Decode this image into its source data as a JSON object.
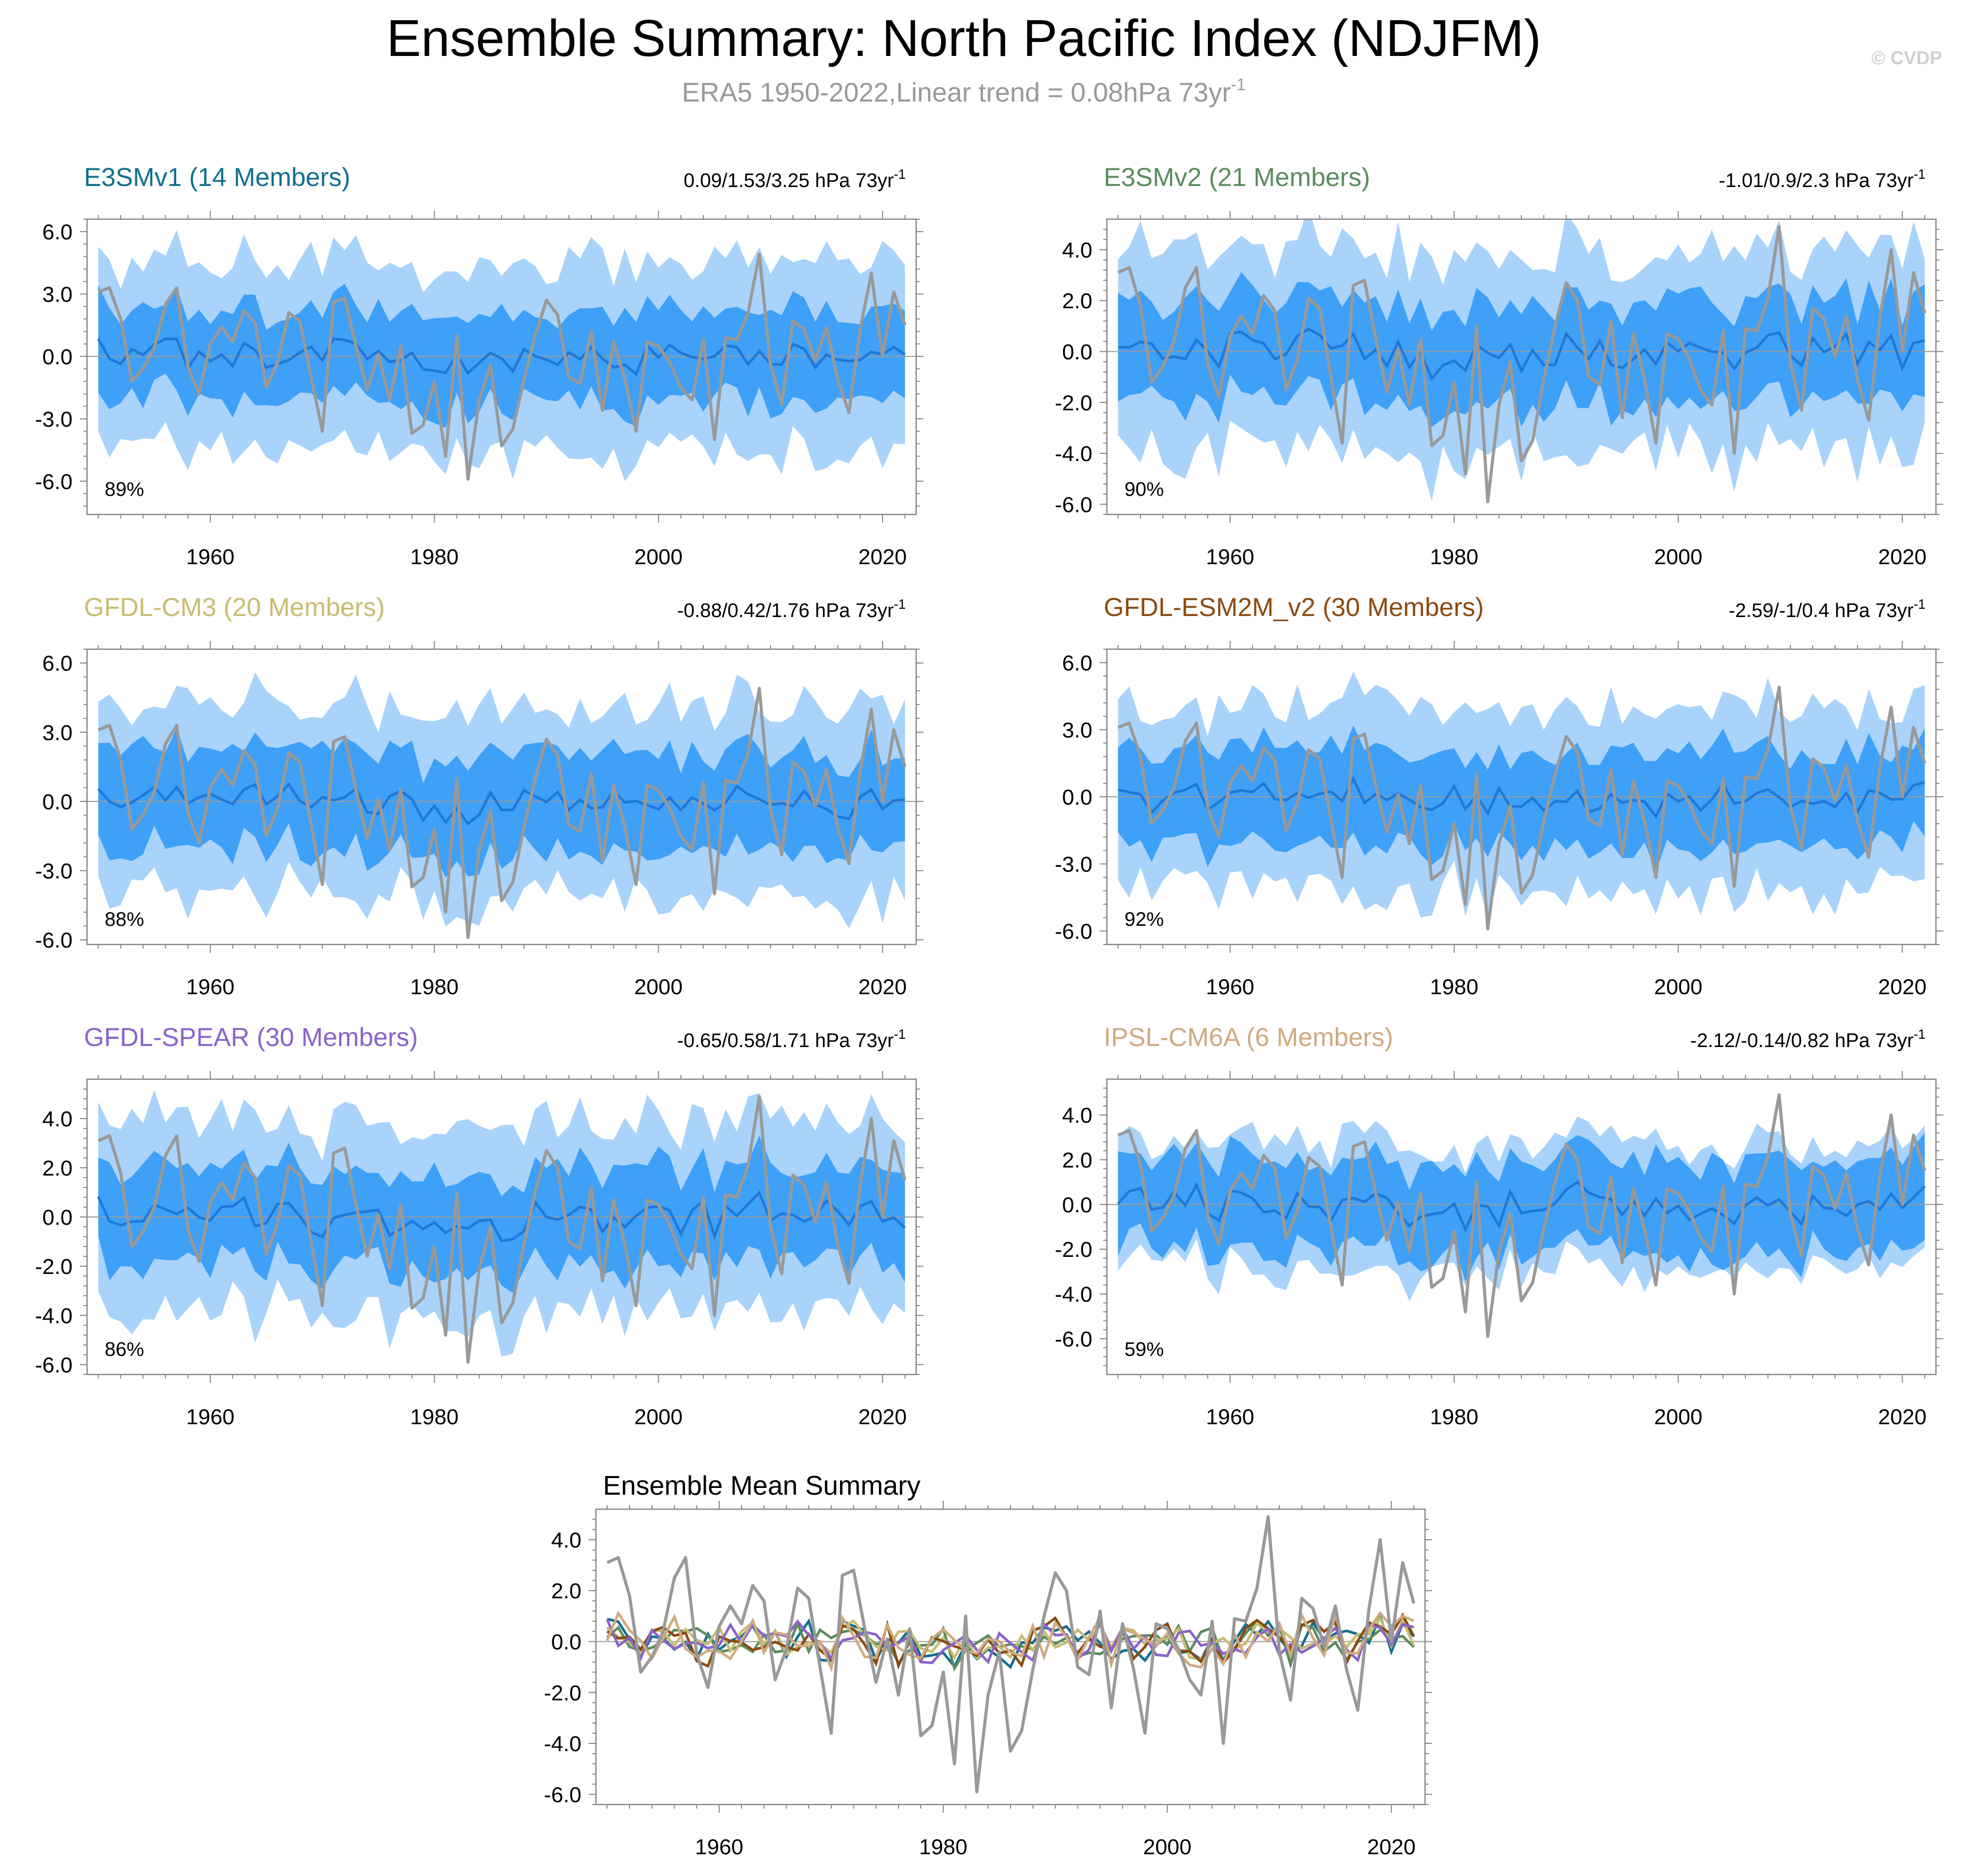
{
  "title": "Ensemble Summary: North Pacific Index (NDJFM)",
  "subtitle": {
    "text": "ERA5 1950-2022,Linear trend = 0.08hPa 73yr",
    "superscript": "-1"
  },
  "watermark": "© CVDP",
  "colors": {
    "outer_band": "#a9d3fb",
    "inner_band": "#3fa0f7",
    "ensemble_mean": "#1f78d8",
    "observations": "#999999",
    "zero_line": "#9a9a9a"
  },
  "chart_data": [
    {
      "type": "area",
      "name": "E3SMv1 (14 Members)",
      "name_color": "#136f8f",
      "trend_text": "0.09/1.53/3.25 hPa 73yr",
      "trend_sup": "-1",
      "percent": "89%",
      "xlim": [
        1949,
        2023
      ],
      "ylim": [
        -7.6,
        6.6
      ],
      "yticks": [
        6.0,
        3.0,
        0.0,
        -3.0,
        -6.0
      ],
      "ytick_labels": [
        "6.0",
        "3.0",
        "0.0",
        "-3.0",
        "-6.0"
      ],
      "xticks": [
        1960,
        1980,
        2000,
        2020
      ],
      "xtick_labels": [
        "1960",
        "1980",
        "2000",
        "2020"
      ],
      "amp": 1.0,
      "spread_inner": 2.2,
      "spread_outer": 4.5,
      "mean_scale": 0.4,
      "seed": 11
    },
    {
      "type": "area",
      "name": "E3SMv2 (21 Members)",
      "name_color": "#5a8b5e",
      "trend_text": "-1.01/0.9/2.3 hPa 73yr",
      "trend_sup": "-1",
      "percent": "90%",
      "xlim": [
        1949,
        2023
      ],
      "ylim": [
        -6.4,
        5.2
      ],
      "yticks": [
        4.0,
        2.0,
        0.0,
        -2.0,
        -4.0,
        -6.0
      ],
      "ytick_labels": [
        "4.0",
        "2.0",
        "0.0",
        "-2.0",
        "-4.0",
        "-6.0"
      ],
      "xticks": [
        1960,
        1980,
        2000,
        2020
      ],
      "xtick_labels": [
        "1960",
        "1980",
        "2000",
        "2020"
      ],
      "amp": 1.0,
      "spread_inner": 2.0,
      "spread_outer": 3.9,
      "mean_scale": 0.45,
      "seed": 23
    },
    {
      "type": "area",
      "name": "GFDL-CM3 (20 Members)",
      "name_color": "#c8bc73",
      "trend_text": "-0.88/0.42/1.76 hPa 73yr",
      "trend_sup": "-1",
      "percent": "88%",
      "xlim": [
        1949,
        2023
      ],
      "ylim": [
        -6.2,
        6.6
      ],
      "yticks": [
        6.0,
        3.0,
        0.0,
        -3.0,
        -6.0
      ],
      "ytick_labels": [
        "6.0",
        "3.0",
        "0.0",
        "-3.0",
        "-6.0"
      ],
      "xticks": [
        1960,
        1980,
        2000,
        2020
      ],
      "xtick_labels": [
        "1960",
        "1980",
        "2000",
        "2020"
      ],
      "amp": 1.0,
      "spread_inner": 2.1,
      "spread_outer": 4.0,
      "mean_scale": 0.4,
      "seed": 37
    },
    {
      "type": "area",
      "name": "GFDL-ESM2M_v2 (30 Members)",
      "name_color": "#8b4a12",
      "trend_text": "-2.59/-1/0.4 hPa 73yr",
      "trend_sup": "-1",
      "percent": "92%",
      "xlim": [
        1949,
        2023
      ],
      "ylim": [
        -6.6,
        6.6
      ],
      "yticks": [
        6.0,
        3.0,
        0.0,
        -3.0,
        -6.0
      ],
      "ytick_labels": [
        "6.0",
        "3.0",
        "0.0",
        "-3.0",
        "-6.0"
      ],
      "xticks": [
        1960,
        1980,
        2000,
        2020
      ],
      "xtick_labels": [
        "1960",
        "1980",
        "2000",
        "2020"
      ],
      "amp": 1.0,
      "spread_inner": 2.1,
      "spread_outer": 4.0,
      "mean_scale": 0.4,
      "seed": 41
    },
    {
      "type": "area",
      "name": "GFDL-SPEAR (30 Members)",
      "name_color": "#8a63c9",
      "trend_text": "-0.65/0.58/1.71 hPa 73yr",
      "trend_sup": "-1",
      "percent": "86%",
      "xlim": [
        1949,
        2023
      ],
      "ylim": [
        -6.4,
        5.6
      ],
      "yticks": [
        4.0,
        2.0,
        0.0,
        -2.0,
        -4.0,
        -6.0
      ],
      "ytick_labels": [
        "4.0",
        "2.0",
        "0.0",
        "-2.0",
        "-4.0",
        "-6.0"
      ],
      "xticks": [
        1960,
        1980,
        2000,
        2020
      ],
      "xtick_labels": [
        "1960",
        "1980",
        "2000",
        "2020"
      ],
      "amp": 1.0,
      "spread_inner": 2.0,
      "spread_outer": 3.8,
      "mean_scale": 0.4,
      "seed": 53
    },
    {
      "type": "area",
      "name": "IPSL-CM6A (6 Members)",
      "name_color": "#cfaa80",
      "trend_text": "-2.12/-0.14/0.82 hPa 73yr",
      "trend_sup": "-1",
      "percent": "59%",
      "xlim": [
        1949,
        2023
      ],
      "ylim": [
        -7.6,
        5.6
      ],
      "yticks": [
        4.0,
        2.0,
        0.0,
        -2.0,
        -4.0,
        -6.0
      ],
      "ytick_labels": [
        "4.0",
        "2.0",
        "0.0",
        "-2.0",
        "-4.0",
        "-6.0"
      ],
      "xticks": [
        1960,
        1980,
        2000,
        2020
      ],
      "xtick_labels": [
        "1960",
        "1980",
        "2000",
        "2020"
      ],
      "amp": 1.0,
      "spread_inner": 2.0,
      "spread_outer": 2.8,
      "mean_scale": 0.5,
      "seed": 67
    },
    {
      "type": "line",
      "title": "Ensemble Mean Summary",
      "xlim": [
        1949,
        2023
      ],
      "ylim": [
        -6.4,
        5.2
      ],
      "yticks": [
        4.0,
        2.0,
        0.0,
        -2.0,
        -4.0,
        -6.0
      ],
      "ytick_labels": [
        "4.0",
        "2.0",
        "0.0",
        "-2.0",
        "-4.0",
        "-6.0"
      ],
      "xticks": [
        1960,
        1980,
        2000,
        2020
      ],
      "xtick_labels": [
        "1960",
        "1980",
        "2000",
        "2020"
      ],
      "series": [
        {
          "name": "E3SMv1",
          "color": "#136f8f",
          "seed": 11,
          "scale": 0.42
        },
        {
          "name": "E3SMv2",
          "color": "#5a8b5e",
          "seed": 23,
          "scale": 0.45
        },
        {
          "name": "GFDL-CM3",
          "color": "#c8bc73",
          "seed": 37,
          "scale": 0.4
        },
        {
          "name": "GFDL-ESM2M_v2",
          "color": "#8b4a12",
          "seed": 41,
          "scale": 0.5
        },
        {
          "name": "GFDL-SPEAR",
          "color": "#8a63c9",
          "seed": 53,
          "scale": 0.42
        },
        {
          "name": "IPSL-CM6A",
          "color": "#cfaa80",
          "seed": 67,
          "scale": 0.6
        }
      ]
    }
  ],
  "observations": {
    "name": "ERA5",
    "start_year": 1950,
    "values": [
      3.1,
      3.3,
      1.8,
      -1.2,
      -0.6,
      0.4,
      2.5,
      3.3,
      -0.5,
      -1.8,
      0.6,
      1.4,
      0.7,
      2.2,
      1.6,
      -1.5,
      -0.3,
      2.1,
      1.7,
      -1.0,
      -3.6,
      2.6,
      2.8,
      0.5,
      -1.6,
      0.1,
      -2.1,
      0.5,
      -3.7,
      -3.3,
      -1.2,
      -4.8,
      1.0,
      -5.9,
      -2.1,
      -0.4,
      -4.3,
      -3.5,
      -1.1,
      1.0,
      2.7,
      2.0,
      -1.0,
      -1.3,
      1.2,
      -2.6,
      0.7,
      -1.1,
      -3.6,
      0.7,
      0.5,
      -0.3,
      -1.5,
      -2.1,
      0.8,
      -4.0,
      0.9,
      0.8,
      2.1,
      4.9,
      -0.4,
      -2.3,
      1.7,
      1.3,
      -0.2,
      1.4,
      -1.1,
      -2.7,
      1.3,
      4.0,
      0.0,
      3.1,
      1.5
    ]
  }
}
